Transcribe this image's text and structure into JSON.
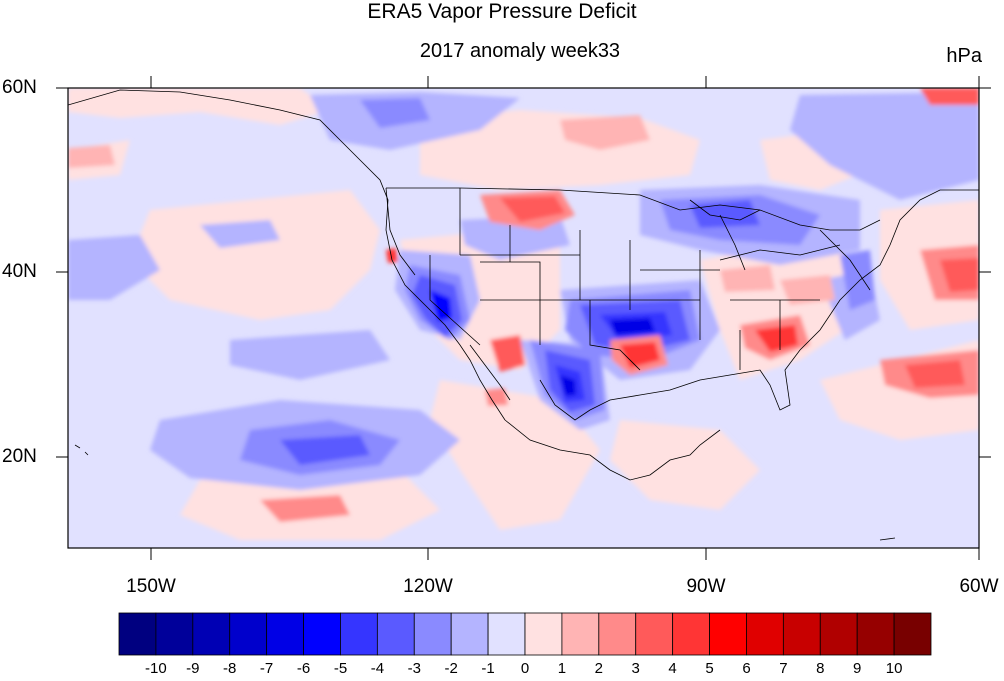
{
  "title": "ERA5 Vapor Pressure Deficit",
  "subtitle": "2017 anomaly week33",
  "units": "hPa",
  "lat_labels": [
    "60N",
    "40N",
    "20N"
  ],
  "lon_labels": [
    "150W",
    "120W",
    "90W",
    "60W"
  ],
  "colorbar": {
    "labels": [
      "-10",
      "-9",
      "-8",
      "-7",
      "-6",
      "-5",
      "-4",
      "-3",
      "-2",
      "-1",
      "0",
      "1",
      "2",
      "3",
      "4",
      "5",
      "6",
      "7",
      "8",
      "9",
      "10"
    ],
    "colors": [
      "#000080",
      "#00009a",
      "#0000b4",
      "#0000cc",
      "#0000e6",
      "#0000ff",
      "#3535ff",
      "#5a5aff",
      "#8a8aff",
      "#b4b4ff",
      "#e1e1ff",
      "#ffe1e1",
      "#ffb4b4",
      "#ff8a8a",
      "#ff5a5a",
      "#ff3535",
      "#ff0000",
      "#e00000",
      "#c80000",
      "#b00000",
      "#960000",
      "#780000"
    ]
  },
  "map": {
    "background_color": "#e1e1ff",
    "lon_range": [
      -160,
      -60
    ],
    "lat_range": [
      10,
      60
    ]
  }
}
